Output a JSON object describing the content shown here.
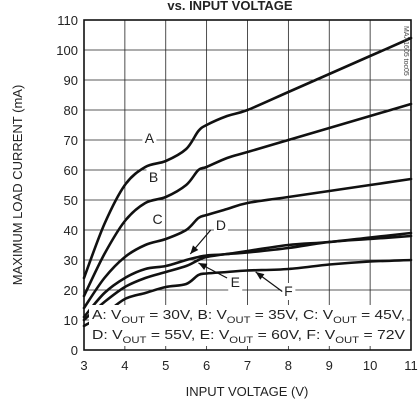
{
  "chart_data": {
    "type": "line",
    "title": "vs. INPUT VOLTAGE",
    "xlabel": "INPUT VOLTAGE (V)",
    "ylabel": "MAXIMUM LOAD CURRENT (mA)",
    "xlim": [
      3,
      11
    ],
    "ylim": [
      0,
      110
    ],
    "xticks": [
      3,
      4,
      5,
      6,
      7,
      8,
      9,
      10,
      11
    ],
    "yticks": [
      0,
      10,
      20,
      30,
      40,
      50,
      60,
      70,
      80,
      90,
      100,
      110
    ],
    "grid": true,
    "watermark": "MAX1605 toc05",
    "series": [
      {
        "name": "A",
        "x": [
          3,
          3.5,
          4,
          4.5,
          5,
          5.5,
          5.8,
          6,
          6.5,
          7,
          8,
          9,
          10,
          11
        ],
        "y": [
          24,
          42,
          55,
          61,
          63,
          67,
          73,
          75,
          78,
          80,
          86,
          92,
          98,
          104
        ]
      },
      {
        "name": "B",
        "x": [
          3,
          3.5,
          4,
          4.5,
          5,
          5.5,
          5.8,
          6,
          6.5,
          7,
          8,
          9,
          10,
          11
        ],
        "y": [
          18,
          32,
          43,
          49,
          51,
          55,
          60,
          61,
          64,
          66,
          70,
          74,
          78,
          82
        ]
      },
      {
        "name": "C",
        "x": [
          3,
          3.5,
          4,
          4.5,
          5,
          5.5,
          5.8,
          6,
          6.5,
          7,
          8,
          9,
          10,
          11
        ],
        "y": [
          14,
          24,
          31,
          35,
          37,
          40,
          44,
          45,
          47,
          49,
          51,
          53,
          55,
          57
        ]
      },
      {
        "name": "D",
        "x": [
          3,
          3.5,
          4,
          4.5,
          5,
          5.5,
          5.8,
          6,
          6.5,
          7,
          8,
          9,
          10,
          11
        ],
        "y": [
          11,
          19,
          24,
          27,
          28,
          30,
          31,
          31.5,
          32,
          33,
          35,
          36,
          37.5,
          39
        ]
      },
      {
        "name": "E",
        "x": [
          3,
          3.5,
          4,
          4.5,
          5,
          5.5,
          5.8,
          6,
          6.5,
          7,
          8,
          9,
          10,
          11
        ],
        "y": [
          10,
          16,
          21,
          24,
          26,
          28,
          30,
          31,
          32,
          32.5,
          34,
          36,
          37,
          38
        ]
      },
      {
        "name": "F",
        "x": [
          3,
          3.5,
          4,
          4.5,
          5,
          5.5,
          5.8,
          6,
          6.5,
          7,
          8,
          9,
          10,
          11
        ],
        "y": [
          8,
          12,
          17,
          19,
          21,
          22,
          25,
          25.5,
          26,
          26.5,
          27,
          28.5,
          29.5,
          30
        ]
      }
    ],
    "curve_labels": [
      {
        "text": "A",
        "x": 4.6,
        "y": 69
      },
      {
        "text": "B",
        "x": 4.7,
        "y": 56
      },
      {
        "text": "C",
        "x": 4.8,
        "y": 42
      },
      {
        "text": "D",
        "x": 6.35,
        "y": 40
      },
      {
        "text": "E",
        "x": 6.7,
        "y": 21
      },
      {
        "text": "F",
        "x": 8.0,
        "y": 18
      }
    ],
    "pointers": [
      {
        "from": [
          6.1,
          40
        ],
        "to": [
          5.6,
          32
        ]
      },
      {
        "from": [
          6.5,
          24
        ],
        "to": [
          5.8,
          29
        ]
      },
      {
        "from": [
          7.85,
          19.5
        ],
        "to": [
          7.2,
          26
        ]
      }
    ],
    "legend_lines": [
      [
        "A: V",
        "OUT",
        " = 30V, B: V",
        "OUT",
        " = 35V, C: V",
        "OUT",
        " = 45V,"
      ],
      [
        "D: V",
        "OUT",
        " = 55V, E: V",
        "OUT",
        " = 60V, F: V",
        "OUT",
        " = 72V"
      ]
    ]
  }
}
